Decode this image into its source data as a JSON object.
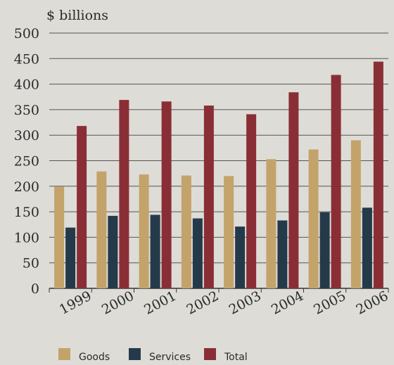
{
  "chart_data": {
    "type": "bar",
    "ylabel": "$ billions",
    "ylim": [
      0,
      500
    ],
    "yticks": [
      0,
      50,
      100,
      150,
      200,
      250,
      300,
      350,
      400,
      450,
      500
    ],
    "categories": [
      "1999",
      "2000",
      "2001",
      "2002",
      "2003",
      "2004",
      "2005",
      "2006"
    ],
    "series": [
      {
        "name": "Goods",
        "color": "#c4a36b",
        "values": [
          199,
          229,
          223,
          221,
          220,
          253,
          272,
          290
        ]
      },
      {
        "name": "Services",
        "color": "#243a4a",
        "values": [
          119,
          142,
          144,
          137,
          121,
          133,
          149,
          158
        ]
      },
      {
        "name": "Total",
        "color": "#8a2e36",
        "values": [
          318,
          369,
          366,
          358,
          341,
          384,
          418,
          444
        ]
      }
    ],
    "grid": true,
    "legend_position": "bottom"
  }
}
